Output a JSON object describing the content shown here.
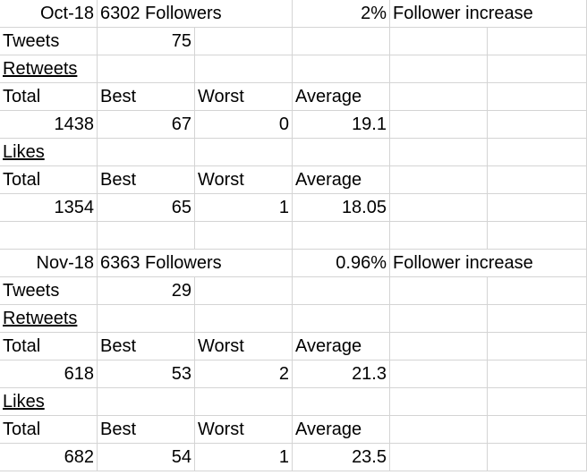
{
  "rows": [
    [
      {
        "c": 0,
        "t": "Oct-18",
        "a": "r"
      },
      {
        "c": 1,
        "t": "6302 Followers",
        "a": "l",
        "s": 1
      },
      {
        "c": 2,
        "t": ""
      },
      {
        "c": 3,
        "t": "2%",
        "a": "r"
      },
      {
        "c": 4,
        "t": "Follower increase",
        "a": "l",
        "s": 1
      },
      {
        "c": 5,
        "t": ""
      }
    ],
    [
      {
        "c": 0,
        "t": "Tweets",
        "a": "l"
      },
      {
        "c": 1,
        "t": "75",
        "a": "r"
      }
    ],
    [
      {
        "c": 0,
        "t": "Retweets",
        "a": "l",
        "u": 1
      }
    ],
    [
      {
        "c": 0,
        "t": "Total",
        "a": "l"
      },
      {
        "c": 1,
        "t": "Best",
        "a": "l"
      },
      {
        "c": 2,
        "t": "Worst",
        "a": "l"
      },
      {
        "c": 3,
        "t": "Average",
        "a": "l"
      }
    ],
    [
      {
        "c": 0,
        "t": "1438",
        "a": "r"
      },
      {
        "c": 1,
        "t": "67",
        "a": "r"
      },
      {
        "c": 2,
        "t": "0",
        "a": "r"
      },
      {
        "c": 3,
        "t": "19.1",
        "a": "r"
      }
    ],
    [
      {
        "c": 0,
        "t": "Likes",
        "a": "l",
        "u": 1
      }
    ],
    [
      {
        "c": 0,
        "t": "Total",
        "a": "l"
      },
      {
        "c": 1,
        "t": "Best",
        "a": "l"
      },
      {
        "c": 2,
        "t": "Worst",
        "a": "l"
      },
      {
        "c": 3,
        "t": "Average",
        "a": "l"
      }
    ],
    [
      {
        "c": 0,
        "t": "1354",
        "a": "r"
      },
      {
        "c": 1,
        "t": "65",
        "a": "r"
      },
      {
        "c": 2,
        "t": "1",
        "a": "r"
      },
      {
        "c": 3,
        "t": "18.05",
        "a": "r"
      }
    ],
    [],
    [
      {
        "c": 0,
        "t": "Nov-18",
        "a": "r"
      },
      {
        "c": 1,
        "t": "6363 Followers",
        "a": "l",
        "s": 1
      },
      {
        "c": 2,
        "t": ""
      },
      {
        "c": 3,
        "t": "0.96%",
        "a": "r"
      },
      {
        "c": 4,
        "t": "Follower increase",
        "a": "l",
        "s": 1
      },
      {
        "c": 5,
        "t": ""
      }
    ],
    [
      {
        "c": 0,
        "t": "Tweets",
        "a": "l"
      },
      {
        "c": 1,
        "t": "29",
        "a": "r"
      }
    ],
    [
      {
        "c": 0,
        "t": "Retweets",
        "a": "l",
        "u": 1
      }
    ],
    [
      {
        "c": 0,
        "t": "Total",
        "a": "l"
      },
      {
        "c": 1,
        "t": "Best",
        "a": "l"
      },
      {
        "c": 2,
        "t": "Worst",
        "a": "l"
      },
      {
        "c": 3,
        "t": "Average",
        "a": "l"
      }
    ],
    [
      {
        "c": 0,
        "t": "618",
        "a": "r"
      },
      {
        "c": 1,
        "t": "53",
        "a": "r"
      },
      {
        "c": 2,
        "t": "2",
        "a": "r"
      },
      {
        "c": 3,
        "t": "21.3",
        "a": "r"
      }
    ],
    [
      {
        "c": 0,
        "t": "Likes",
        "a": "l",
        "u": 1
      }
    ],
    [
      {
        "c": 0,
        "t": "Total",
        "a": "l"
      },
      {
        "c": 1,
        "t": "Best",
        "a": "l"
      },
      {
        "c": 2,
        "t": "Worst",
        "a": "l"
      },
      {
        "c": 3,
        "t": "Average",
        "a": "l"
      }
    ],
    [
      {
        "c": 0,
        "t": "682",
        "a": "r"
      },
      {
        "c": 1,
        "t": "54",
        "a": "r"
      },
      {
        "c": 2,
        "t": "1",
        "a": "r"
      },
      {
        "c": 3,
        "t": "23.5",
        "a": "r"
      }
    ]
  ]
}
